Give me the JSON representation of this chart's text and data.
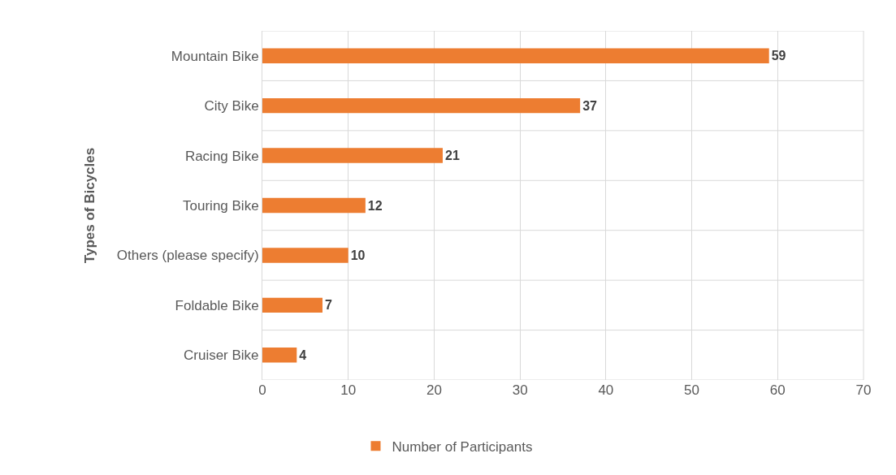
{
  "chart_data": {
    "type": "bar",
    "orientation": "horizontal",
    "ylabel": "Types of Bicycles",
    "categories": [
      "Mountain Bike",
      "City Bike",
      "Racing Bike",
      "Touring Bike",
      "Others (please specify)",
      "Foldable Bike",
      "Cruiser Bike"
    ],
    "series": [
      {
        "name": "Number of Participants",
        "color": "#ed7d31",
        "values": [
          59,
          37,
          21,
          12,
          10,
          7,
          4
        ]
      }
    ],
    "xlim": [
      0,
      70
    ],
    "xticks": [
      0,
      10,
      20,
      30,
      40,
      50,
      60,
      70
    ],
    "grid": true,
    "legend": "bottom",
    "data_labels": true
  }
}
